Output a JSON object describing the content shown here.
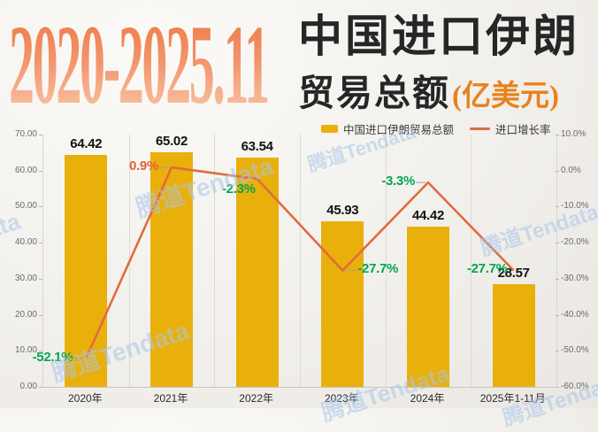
{
  "header": {
    "period": "2020-2025.11",
    "title_line1": "中国进口伊朗",
    "title_line2": "贸易总额",
    "unit": "(亿美元)"
  },
  "legend": {
    "items": [
      {
        "label": "中国进口伊朗贸易总额",
        "swatch": "bar-swatch"
      },
      {
        "label": "进口增长率",
        "swatch": "line-swatch"
      }
    ]
  },
  "watermark_text": "腾道Tendata",
  "colors": {
    "bar": "#e9b00c",
    "line": "#e06c3c",
    "rate_green": "#00a651",
    "rate_orange": "#e2603c",
    "title_gradient_top": "#ed7842",
    "title_gradient_bottom": "#f9cbad",
    "title_text": "#262626",
    "unit_orange": "#e8821e",
    "axis_text": "#6a6a6a",
    "watermark": "#a9c6ea",
    "background": "#f2f0ec"
  },
  "chart_data": {
    "type": "bar",
    "subtype": "combo bar + line, dual axis",
    "title": "2020-2025.11 中国进口伊朗贸易总额(亿美元)",
    "categories": [
      "2020年",
      "2021年",
      "2022年",
      "2023年",
      "2024年",
      "2025年1-11月"
    ],
    "series": [
      {
        "name": "中国进口伊朗贸易总额",
        "type": "bar",
        "axis": "left",
        "values": [
          64.42,
          65.02,
          63.54,
          45.93,
          44.42,
          28.57
        ],
        "labels": [
          "64.42",
          "65.02",
          "63.54",
          "45.93",
          "44.42",
          "28.57"
        ]
      },
      {
        "name": "进口增长率",
        "type": "line",
        "axis": "right",
        "values": [
          -52.1,
          0.9,
          -2.3,
          -27.7,
          -3.3,
          -27.7
        ],
        "labels": [
          "-52.1%",
          "0.9%",
          "-2.3%",
          "-27.7%",
          "-3.3%",
          "-27.7%"
        ],
        "label_colors": [
          "green",
          "orange",
          "green",
          "green",
          "green",
          "green"
        ]
      }
    ],
    "left_axis": {
      "min": 0,
      "max": 70,
      "ticks": [
        "70.00",
        "60.00",
        "50.00",
        "40.00",
        "30.00",
        "20.00",
        "10.00",
        "0.00"
      ]
    },
    "right_axis": {
      "min": -60,
      "max": 10,
      "ticks": [
        "10.0%",
        "0.0%",
        "-10.0%",
        "-20.0%",
        "-30.0%",
        "-40.0%",
        "-50.0%",
        "-60.0%"
      ]
    },
    "grid": "vertical category separators only",
    "legend_position": "top-right above plot"
  }
}
